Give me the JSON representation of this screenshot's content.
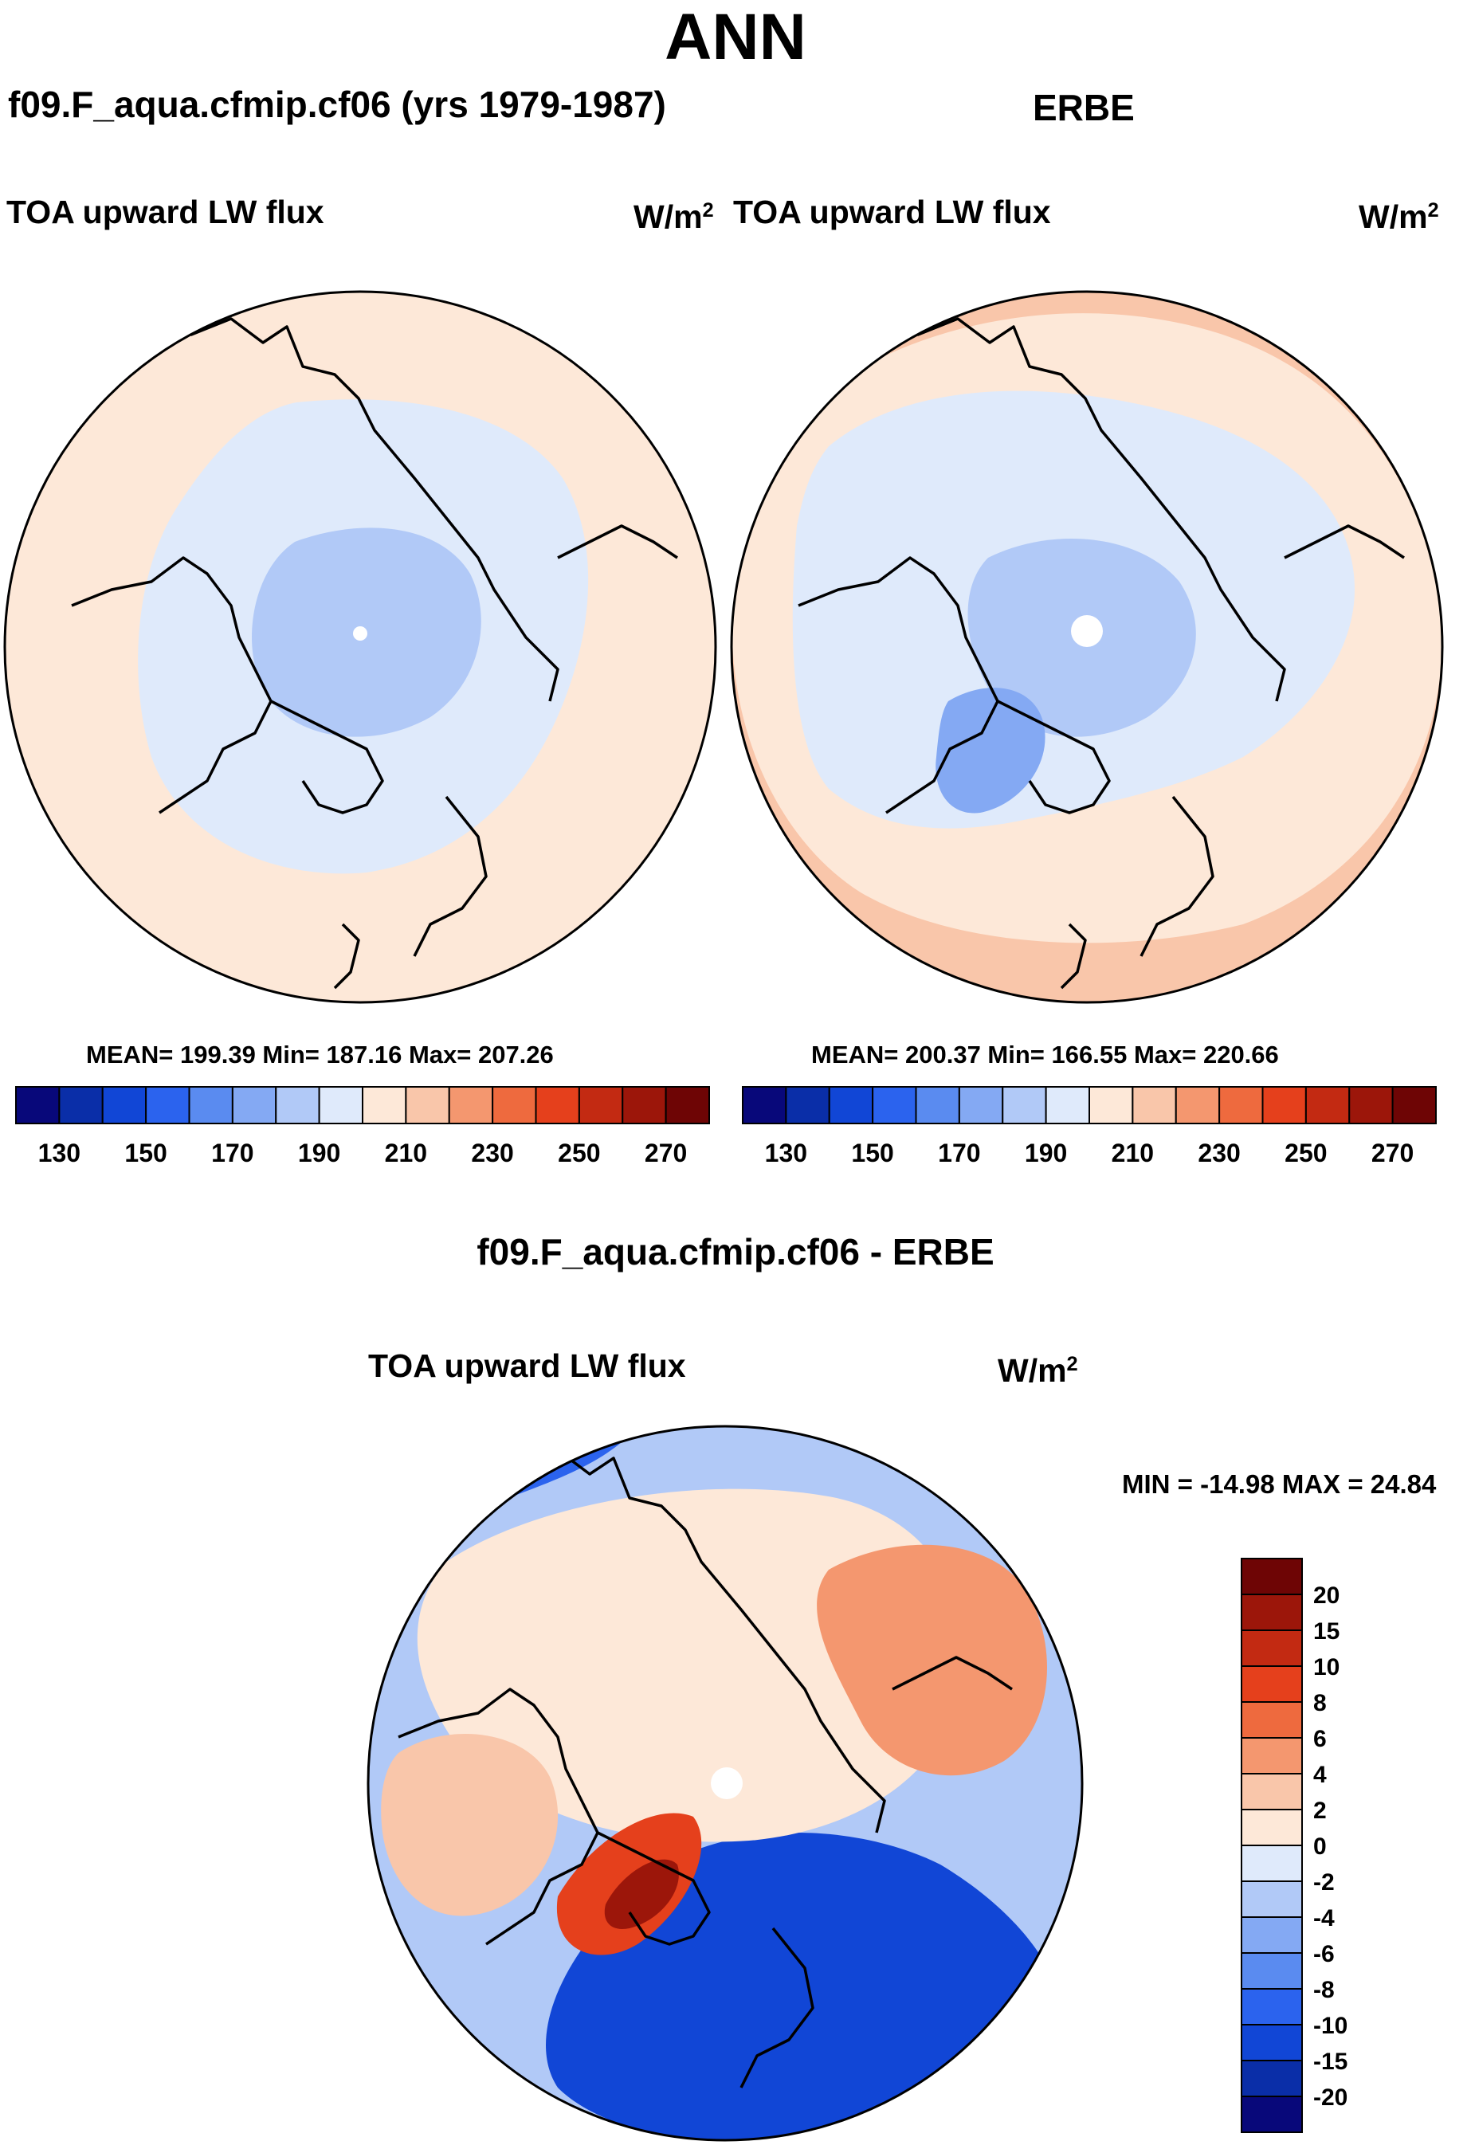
{
  "figure": {
    "title": "ANN",
    "left_panel_title": "f09.F_aqua.cfmip.cf06 (yrs 1979-1987)",
    "right_panel_title": "ERBE",
    "difference_title": "f09.F_aqua.cfmip.cf06 - ERBE"
  },
  "chart_data": [
    {
      "type": "heatmap",
      "projection": "north polar stereographic",
      "title": "f09.F_aqua.cfmip.cf06 (yrs 1979-1987)",
      "variable": "TOA upward LW flux",
      "units_base": "W/m",
      "units_exp": "2",
      "stats": {
        "mean": "199.39",
        "min": "187.16",
        "max": "207.26"
      },
      "stats_text": "MEAN= 199.39  Min= 187.16  Max= 207.26",
      "colorbar": {
        "orientation": "horizontal",
        "colors": [
          "#08087a",
          "#0a2ea8",
          "#1146d6",
          "#2b63ee",
          "#5a8bf0",
          "#84a9f3",
          "#b1c9f7",
          "#dfeafb",
          "#fde8d8",
          "#f9c6aa",
          "#f4976f",
          "#ee6a3e",
          "#e5401c",
          "#c32a12",
          "#9c160a",
          "#6e0505"
        ],
        "tick_labels": [
          "130",
          "150",
          "170",
          "190",
          "210",
          "230",
          "250",
          "270"
        ],
        "tick_positions": [
          1,
          3,
          5,
          7,
          9,
          11,
          13,
          15
        ]
      },
      "field_levels": [
        {
          "range": "200-210",
          "color": "#fde8d8",
          "region": "outer midlatitudes"
        },
        {
          "range": "190-200",
          "color": "#dfeafb",
          "region": "polar cap"
        },
        {
          "range": "180-190",
          "color": "#b1c9f7",
          "region": "central Arctic core"
        }
      ]
    },
    {
      "type": "heatmap",
      "projection": "north polar stereographic",
      "title": "ERBE",
      "variable": "TOA upward LW flux",
      "units_base": "W/m",
      "units_exp": "2",
      "stats": {
        "mean": "200.37",
        "min": "166.55",
        "max": "220.66"
      },
      "stats_text": "MEAN= 200.37  Min= 166.55  Max= 220.66",
      "colorbar": {
        "orientation": "horizontal",
        "colors": [
          "#08087a",
          "#0a2ea8",
          "#1146d6",
          "#2b63ee",
          "#5a8bf0",
          "#84a9f3",
          "#b1c9f7",
          "#dfeafb",
          "#fde8d8",
          "#f9c6aa",
          "#f4976f",
          "#ee6a3e",
          "#e5401c",
          "#c32a12",
          "#9c160a",
          "#6e0505"
        ],
        "tick_labels": [
          "130",
          "150",
          "170",
          "190",
          "210",
          "230",
          "250",
          "270"
        ],
        "tick_positions": [
          1,
          3,
          5,
          7,
          9,
          11,
          13,
          15
        ]
      },
      "field_levels": [
        {
          "range": "210-220",
          "color": "#f9c6aa",
          "region": "southern rim"
        },
        {
          "range": "200-210",
          "color": "#fde8d8",
          "region": "midlatitudes"
        },
        {
          "range": "190-200",
          "color": "#dfeafb",
          "region": "polar cap"
        },
        {
          "range": "180-190",
          "color": "#b1c9f7",
          "region": "central Arctic"
        },
        {
          "range": "170-180",
          "color": "#84a9f3",
          "region": "Greenland"
        }
      ]
    },
    {
      "type": "heatmap",
      "projection": "north polar stereographic",
      "title": "f09.F_aqua.cfmip.cf06 - ERBE",
      "variable": "TOA upward LW flux",
      "units_base": "W/m",
      "units_exp": "2",
      "minmax_text": "MIN = -14.98 MAX =  24.84",
      "min": -14.98,
      "max": 24.84,
      "colorbar": {
        "orientation": "vertical",
        "colors": [
          "#6e0505",
          "#9c160a",
          "#c32a12",
          "#e5401c",
          "#ee6a3e",
          "#f4976f",
          "#f9c6aa",
          "#fde8d8",
          "#dfeafb",
          "#b1c9f7",
          "#84a9f3",
          "#5a8bf0",
          "#2b63ee",
          "#1146d6",
          "#0a2ea8",
          "#08087a"
        ],
        "tick_labels": [
          "20",
          "15",
          "10",
          "8",
          "6",
          "4",
          "2",
          "0",
          "-2",
          "-4",
          "-6",
          "-8",
          "-10",
          "-15",
          "-20"
        ]
      },
      "field_levels": [
        {
          "range": ">20",
          "color": "#9c160a",
          "region": "Greenland core"
        },
        {
          "range": "4 to 10",
          "color": "#f4976f",
          "region": "Siberia and Canada"
        },
        {
          "range": "0 to 4",
          "color": "#fde8d8",
          "region": "central Arctic"
        },
        {
          "range": "-2 to -6",
          "color": "#b1c9f7",
          "region": "transition belt"
        },
        {
          "range": "-8 to -15",
          "color": "#1146d6",
          "region": "North Atlantic and Europe"
        }
      ]
    }
  ]
}
